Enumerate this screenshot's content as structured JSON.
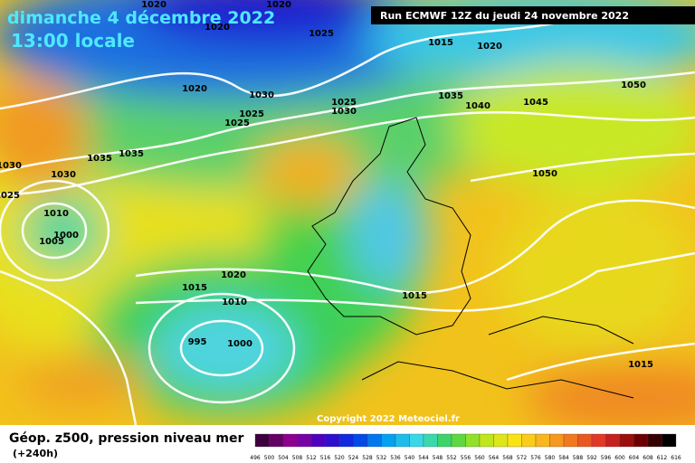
{
  "header": {
    "date": "dimanche 4 décembre 2022",
    "time": "13:00 locale",
    "run": "Run ECMWF 12Z du jeudi 24 novembre 2022"
  },
  "isobar_labels": [
    "1020",
    "1020",
    "1020",
    "1025",
    "1015",
    "1020",
    "1020",
    "1030",
    "1025",
    "1030",
    "1025",
    "1025",
    "1035",
    "1040",
    "1045",
    "1050",
    "1035",
    "1035",
    "1030",
    "1030",
    "1025",
    "1010",
    "1000",
    "1005",
    "1050",
    "1020",
    "1015",
    "1010",
    "1015",
    "995",
    "1000",
    "1015"
  ],
  "copyright": "Copyright 2022 Meteociel.fr",
  "legend": {
    "title": "Géop. z500, pression niveau mer",
    "lead": "(+240h)",
    "scale": [
      496,
      500,
      504,
      508,
      512,
      516,
      520,
      524,
      528,
      532,
      536,
      540,
      544,
      548,
      552,
      556,
      560,
      564,
      568,
      572,
      576,
      580,
      584,
      588,
      592,
      596,
      600,
      604,
      608,
      612,
      616
    ]
  }
}
